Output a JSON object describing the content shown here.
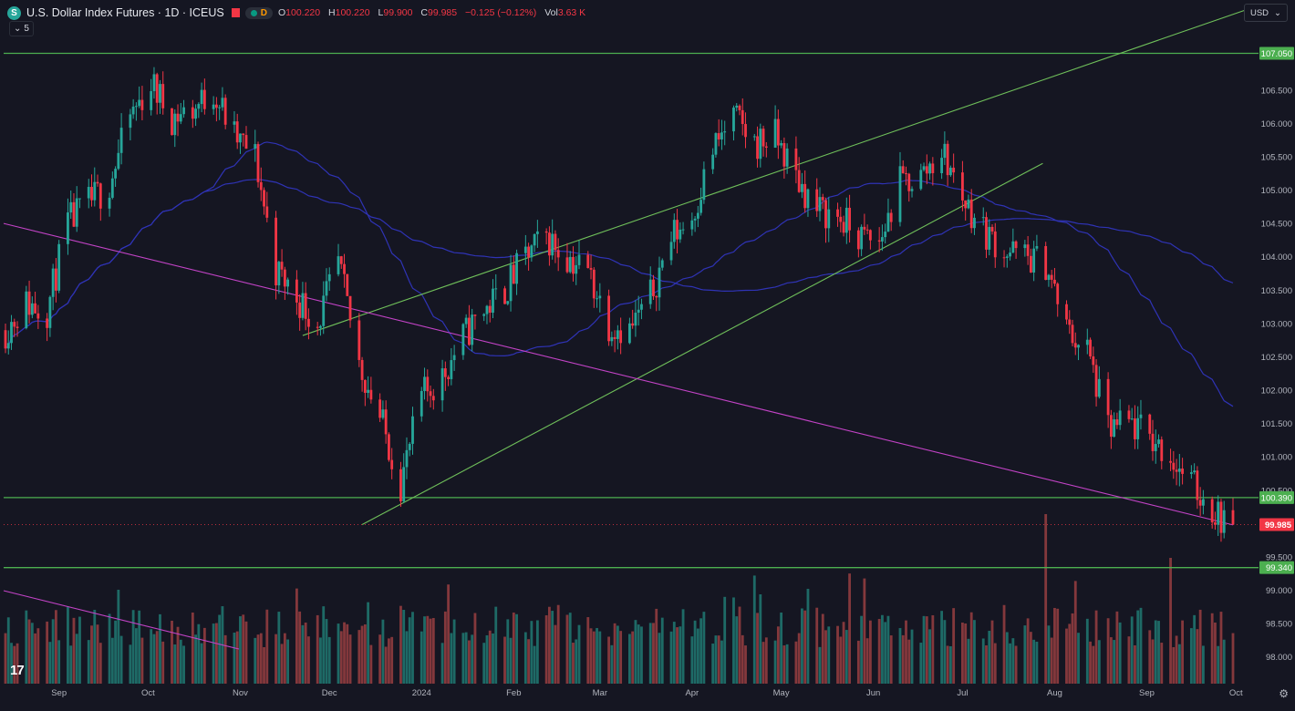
{
  "header": {
    "symbol_icon": "S",
    "title": "U.S. Dollar Index Futures · 1D · ICEUS",
    "interval_badge": "D",
    "ohlc": [
      {
        "key": "O",
        "value": "100.220"
      },
      {
        "key": "H",
        "value": "100.220"
      },
      {
        "key": "L",
        "value": "99.900"
      },
      {
        "key": "C",
        "value": "99.985"
      }
    ],
    "change": "−0.125 (−0.12%)",
    "volume_label": "Vol",
    "volume_value": "3.63 K",
    "indicators_count": "5",
    "currency": "USD"
  },
  "colors": {
    "background": "#151622",
    "up": "#26a69a",
    "down": "#f23645",
    "volume_up": "#1f6f6a",
    "volume_down": "#8a3a3e",
    "support": "#4caf50",
    "channel": "#6fbf5a",
    "trendline": "#c243c6",
    "ma": "#2f33b5",
    "price_label": "#f23645"
  },
  "chart_data": {
    "type": "candlestick",
    "title": "U.S. Dollar Index Futures · 1D · ICEUS",
    "x_ticks": [
      "Sep",
      "Oct",
      "Nov",
      "Dec",
      "2024",
      "Feb",
      "Mar",
      "Apr",
      "May",
      "Jun",
      "Jul",
      "Aug",
      "Sep",
      "Oct"
    ],
    "y_ticks": [
      "107.050",
      "106.500",
      "106.000",
      "105.500",
      "105.000",
      "104.500",
      "104.000",
      "103.500",
      "103.000",
      "102.500",
      "102.000",
      "101.500",
      "101.000",
      "100.500",
      "99.500",
      "99.000",
      "98.500",
      "98.000"
    ],
    "ylim": [
      97.6,
      107.85
    ],
    "horizontal_levels": [
      {
        "label": "107.050",
        "value": 107.05
      },
      {
        "label": "100.390",
        "value": 100.39
      },
      {
        "label": "99.340",
        "value": 99.34
      }
    ],
    "last_price": {
      "label": "99.985",
      "value": 99.985
    },
    "grid": false,
    "close_path": [
      {
        "date": "2023-08-14",
        "value": 102.9
      },
      {
        "date": "2023-08-21",
        "value": 103.3
      },
      {
        "date": "2023-08-28",
        "value": 103.2
      },
      {
        "date": "2023-09-04",
        "value": 104.5
      },
      {
        "date": "2023-09-11",
        "value": 104.8
      },
      {
        "date": "2023-09-18",
        "value": 105.1
      },
      {
        "date": "2023-09-25",
        "value": 106.1
      },
      {
        "date": "2023-10-02",
        "value": 106.6
      },
      {
        "date": "2023-10-09",
        "value": 106.1
      },
      {
        "date": "2023-10-16",
        "value": 106.2
      },
      {
        "date": "2023-10-23",
        "value": 106.5
      },
      {
        "date": "2023-10-30",
        "value": 105.8
      },
      {
        "date": "2023-11-06",
        "value": 105.5
      },
      {
        "date": "2023-11-13",
        "value": 103.8
      },
      {
        "date": "2023-11-20",
        "value": 103.4
      },
      {
        "date": "2023-11-27",
        "value": 103.0
      },
      {
        "date": "2023-12-04",
        "value": 103.9
      },
      {
        "date": "2023-12-11",
        "value": 102.4
      },
      {
        "date": "2023-12-18",
        "value": 101.6
      },
      {
        "date": "2023-12-25",
        "value": 100.6
      },
      {
        "date": "2024-01-01",
        "value": 101.9
      },
      {
        "date": "2024-01-08",
        "value": 102.2
      },
      {
        "date": "2024-01-15",
        "value": 102.8
      },
      {
        "date": "2024-01-22",
        "value": 103.2
      },
      {
        "date": "2024-01-29",
        "value": 103.5
      },
      {
        "date": "2024-02-05",
        "value": 104.0
      },
      {
        "date": "2024-02-12",
        "value": 104.3
      },
      {
        "date": "2024-02-19",
        "value": 104.0
      },
      {
        "date": "2024-02-26",
        "value": 103.8
      },
      {
        "date": "2024-03-04",
        "value": 103.0
      },
      {
        "date": "2024-03-11",
        "value": 102.9
      },
      {
        "date": "2024-03-18",
        "value": 103.4
      },
      {
        "date": "2024-03-25",
        "value": 104.3
      },
      {
        "date": "2024-04-01",
        "value": 104.6
      },
      {
        "date": "2024-04-08",
        "value": 105.6
      },
      {
        "date": "2024-04-15",
        "value": 106.1
      },
      {
        "date": "2024-04-22",
        "value": 105.7
      },
      {
        "date": "2024-04-29",
        "value": 105.8
      },
      {
        "date": "2024-05-06",
        "value": 105.2
      },
      {
        "date": "2024-05-13",
        "value": 104.7
      },
      {
        "date": "2024-05-20",
        "value": 104.6
      },
      {
        "date": "2024-05-27",
        "value": 104.3
      },
      {
        "date": "2024-06-03",
        "value": 104.2
      },
      {
        "date": "2024-06-10",
        "value": 105.1
      },
      {
        "date": "2024-06-17",
        "value": 105.2
      },
      {
        "date": "2024-06-24",
        "value": 105.6
      },
      {
        "date": "2024-07-01",
        "value": 104.9
      },
      {
        "date": "2024-07-08",
        "value": 104.4
      },
      {
        "date": "2024-07-15",
        "value": 104.1
      },
      {
        "date": "2024-07-22",
        "value": 104.0
      },
      {
        "date": "2024-07-29",
        "value": 103.9
      },
      {
        "date": "2024-08-05",
        "value": 102.9
      },
      {
        "date": "2024-08-12",
        "value": 102.6
      },
      {
        "date": "2024-08-19",
        "value": 101.4
      },
      {
        "date": "2024-08-26",
        "value": 101.5
      },
      {
        "date": "2024-09-02",
        "value": 101.3
      },
      {
        "date": "2024-09-09",
        "value": 101.0
      },
      {
        "date": "2024-09-16",
        "value": 100.6
      },
      {
        "date": "2024-09-23",
        "value": 100.2
      },
      {
        "date": "2024-09-30",
        "value": 99.985
      }
    ]
  }
}
